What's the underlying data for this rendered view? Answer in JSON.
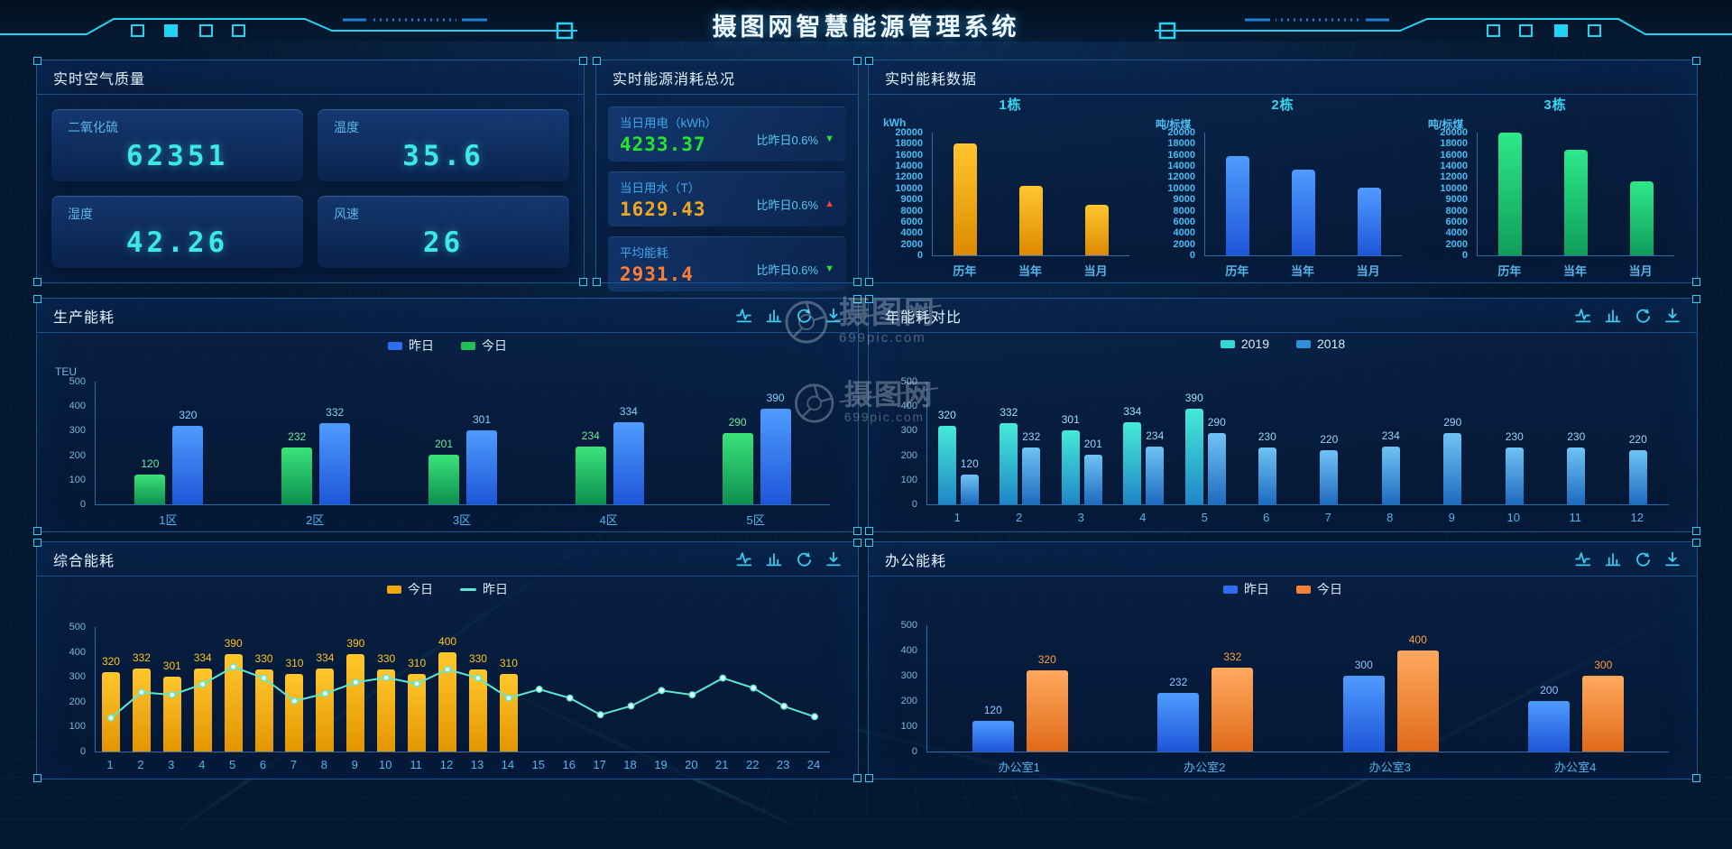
{
  "header": {
    "title": "摄图网智慧能源管理系统"
  },
  "toolbar_icons": [
    "line-chart-icon",
    "bar-chart-icon",
    "refresh-icon",
    "download-icon"
  ],
  "accent_color": "#2fd3f2",
  "watermark": {
    "line1": "摄图网",
    "line2": "699pic.com"
  },
  "panels": {
    "air_quality": {
      "title": "实时空气质量",
      "cards": [
        {
          "label": "二氧化硫",
          "value": "62351"
        },
        {
          "label": "温度",
          "value": "35.6"
        },
        {
          "label": "湿度",
          "value": "42.26"
        },
        {
          "label": "风速",
          "value": "26"
        }
      ]
    },
    "energy_summary": {
      "title": "实时能源消耗总况",
      "rows": [
        {
          "label": "当日用电（kWh）",
          "value": "4233.37",
          "value_color": "#25e52a",
          "compare": "比昨日0.6%",
          "trend": "down",
          "trend_color": "#2adf3f"
        },
        {
          "label": "当日用水（T）",
          "value": "1629.43",
          "value_color": "#f0a61e",
          "compare": "比昨日0.6%",
          "trend": "up",
          "trend_color": "#ff4040"
        },
        {
          "label": "平均能耗",
          "value": "2931.4",
          "value_color": "#ff7e33",
          "compare": "比昨日0.6%",
          "trend": "down",
          "trend_color": "#2adf3f"
        }
      ]
    },
    "realtime_energy": {
      "title": "实时能耗数据"
    },
    "production": {
      "title": "生产能耗",
      "legend": [
        {
          "label": "昨日",
          "color": "#2f6df0",
          "shape": "bar"
        },
        {
          "label": "今日",
          "color": "#1fc05a",
          "shape": "bar"
        }
      ]
    },
    "yearly": {
      "title": "年能耗对比",
      "legend": [
        {
          "label": "2019",
          "color": "#35d8d8",
          "shape": "bar"
        },
        {
          "label": "2018",
          "color": "#2f8fd8",
          "shape": "bar"
        }
      ]
    },
    "comprehensive": {
      "title": "综合能耗",
      "legend": [
        {
          "label": "今日",
          "color": "#f0a80a",
          "shape": "bar"
        },
        {
          "label": "昨日",
          "color": "#5fe7d1",
          "shape": "line"
        }
      ]
    },
    "office": {
      "title": "办公能耗",
      "legend": [
        {
          "label": "昨日",
          "color": "#2f6df0",
          "shape": "bar"
        },
        {
          "label": "今日",
          "color": "#f58138",
          "shape": "bar"
        }
      ]
    }
  },
  "chart_data": [
    {
      "id": "building1",
      "type": "bar",
      "title": "1栋",
      "ylabel": "kWh",
      "yticks": [
        20000,
        18000,
        16000,
        14000,
        12000,
        10000,
        9000,
        8000,
        6000,
        4000,
        2000,
        0
      ],
      "categories": [
        "历年",
        "当年",
        "当月"
      ],
      "values": [
        18000,
        10500,
        8500
      ],
      "bar_color": [
        "#ffc62e",
        "#dd8a00"
      ]
    },
    {
      "id": "building2",
      "type": "bar",
      "title": "2栋",
      "ylabel": "吨/标煤",
      "yticks": [
        20000,
        18000,
        16000,
        14000,
        12000,
        10000,
        9000,
        8000,
        6000,
        4000,
        2000,
        0
      ],
      "categories": [
        "历年",
        "当年",
        "当月"
      ],
      "values": [
        15800,
        13400,
        10200
      ],
      "bar_color": [
        "#4f9bff",
        "#1e56d8"
      ]
    },
    {
      "id": "building3",
      "type": "bar",
      "title": "3栋",
      "ylabel": "吨/标煤",
      "yticks": [
        20000,
        18000,
        16000,
        14000,
        12000,
        10000,
        9000,
        8000,
        6000,
        4000,
        2000,
        0
      ],
      "categories": [
        "历年",
        "当年",
        "当月"
      ],
      "values": [
        20000,
        17000,
        11300
      ],
      "bar_color": [
        "#2ee88a",
        "#0f9e5a"
      ]
    },
    {
      "id": "production",
      "type": "grouped_bar",
      "title": "生产能耗",
      "ylabel": "TEU",
      "yticks": [
        500,
        400,
        300,
        200,
        100,
        0
      ],
      "ylim": [
        0,
        500
      ],
      "categories": [
        "1区",
        "2区",
        "3区",
        "4区",
        "5区"
      ],
      "series": [
        {
          "name": "今日",
          "values": [
            120,
            232,
            201,
            234,
            290
          ],
          "color": [
            "#3ae37a",
            "#0d9050"
          ],
          "label_color": "#6fe89a"
        },
        {
          "name": "昨日",
          "values": [
            320,
            332,
            301,
            334,
            390
          ],
          "color": [
            "#4f9bff",
            "#1e56d8"
          ],
          "label_color": "#86d2f8"
        }
      ]
    },
    {
      "id": "yearly",
      "type": "grouped_bar",
      "title": "年能耗对比",
      "yticks": [
        500,
        400,
        300,
        200,
        100,
        0
      ],
      "ylim": [
        0,
        500
      ],
      "categories": [
        "1",
        "2",
        "3",
        "4",
        "5",
        "6",
        "7",
        "8",
        "9",
        "10",
        "11",
        "12"
      ],
      "series": [
        {
          "name": "2019",
          "values": [
            320,
            332,
            301,
            334,
            390,
            null,
            null,
            null,
            null,
            null,
            null,
            null
          ],
          "color": [
            "#45ead8",
            "#1f86c8"
          ],
          "label_color": "#9ee0f8"
        },
        {
          "name": "2018",
          "values": [
            120,
            232,
            201,
            234,
            290,
            230,
            220,
            234,
            290,
            230,
            230,
            220
          ],
          "color": [
            "#6fc3f5",
            "#1f6bc0"
          ],
          "label_color": "#9ed2f8"
        }
      ]
    },
    {
      "id": "comprehensive",
      "type": "bar_line",
      "title": "综合能耗",
      "yticks": [
        500,
        400,
        300,
        200,
        100,
        0
      ],
      "ylim": [
        0,
        500
      ],
      "categories": [
        "1",
        "2",
        "3",
        "4",
        "5",
        "6",
        "7",
        "8",
        "9",
        "10",
        "11",
        "12",
        "13",
        "14",
        "15",
        "16",
        "17",
        "18",
        "19",
        "20",
        "21",
        "22",
        "23",
        "24"
      ],
      "series": [
        {
          "name": "今日",
          "values": [
            320,
            332,
            301,
            334,
            390,
            330,
            310,
            334,
            390,
            330,
            310,
            400,
            330,
            310,
            null,
            null,
            null,
            null,
            null,
            null,
            null,
            null,
            null,
            null
          ],
          "color": [
            "#ffc72c",
            "#e39500"
          ],
          "label_color": "#ffc41f"
        }
      ],
      "line": {
        "name": "昨日",
        "values": [
          135,
          238,
          228,
          270,
          340,
          295,
          203,
          233,
          278,
          297,
          272,
          330,
          295,
          215,
          250,
          215,
          148,
          183,
          245,
          228,
          295,
          255,
          182,
          140
        ],
        "color": "#5fe7d1"
      }
    },
    {
      "id": "office",
      "type": "grouped_bar",
      "title": "办公能耗",
      "yticks": [
        500,
        400,
        300,
        200,
        100,
        0
      ],
      "ylim": [
        0,
        500
      ],
      "categories": [
        "办公室1",
        "办公室2",
        "办公室3",
        "办公室4"
      ],
      "series": [
        {
          "name": "昨日",
          "values": [
            120,
            232,
            300,
            200
          ],
          "color": [
            "#4f9bff",
            "#1e56d8"
          ],
          "label_color": "#8fc6ff"
        },
        {
          "name": "今日",
          "values": [
            320,
            332,
            400,
            300
          ],
          "color": [
            "#ffa95e",
            "#e06a1a"
          ],
          "label_color": "#ff9e45"
        }
      ]
    }
  ]
}
